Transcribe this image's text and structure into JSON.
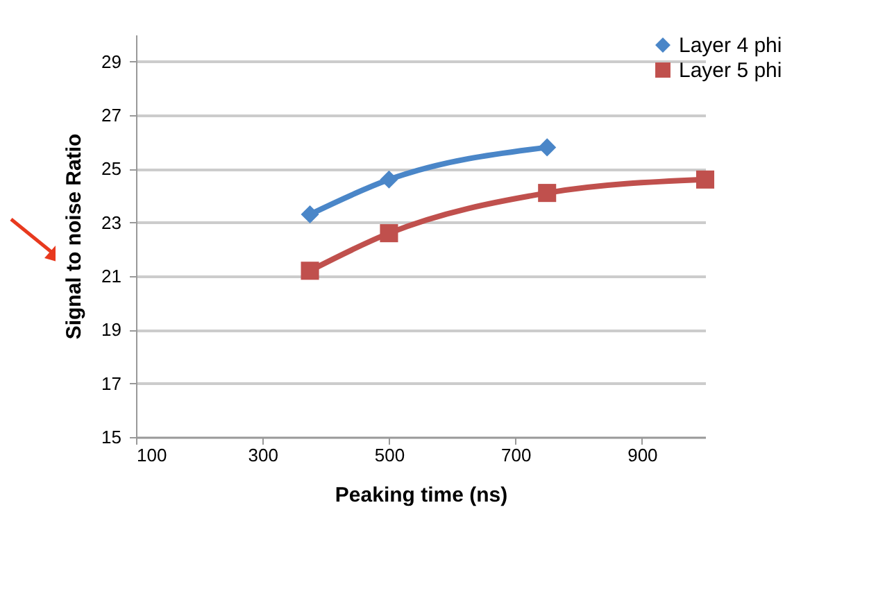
{
  "chart_data": {
    "type": "line",
    "xlabel": "Peaking time (ns)",
    "ylabel": "Signal to noise Ratio",
    "x": [
      375,
      500,
      750,
      1000
    ],
    "series": [
      {
        "name": "Layer 4 phi",
        "color": "#4a86c8",
        "marker": "diamond",
        "values": [
          23.3,
          24.6,
          25.8,
          null
        ]
      },
      {
        "name": "Layer 5 phi",
        "color": "#c0504d",
        "marker": "square",
        "values": [
          21.2,
          22.6,
          24.1,
          24.6
        ]
      }
    ],
    "xlim": [
      100,
      1000
    ],
    "xticks": [
      100,
      300,
      500,
      700,
      900
    ],
    "ylim": [
      15,
      30
    ],
    "yticks": [
      15,
      17,
      19,
      21,
      23,
      25,
      27,
      29
    ],
    "grid": "y",
    "legend": "right"
  }
}
